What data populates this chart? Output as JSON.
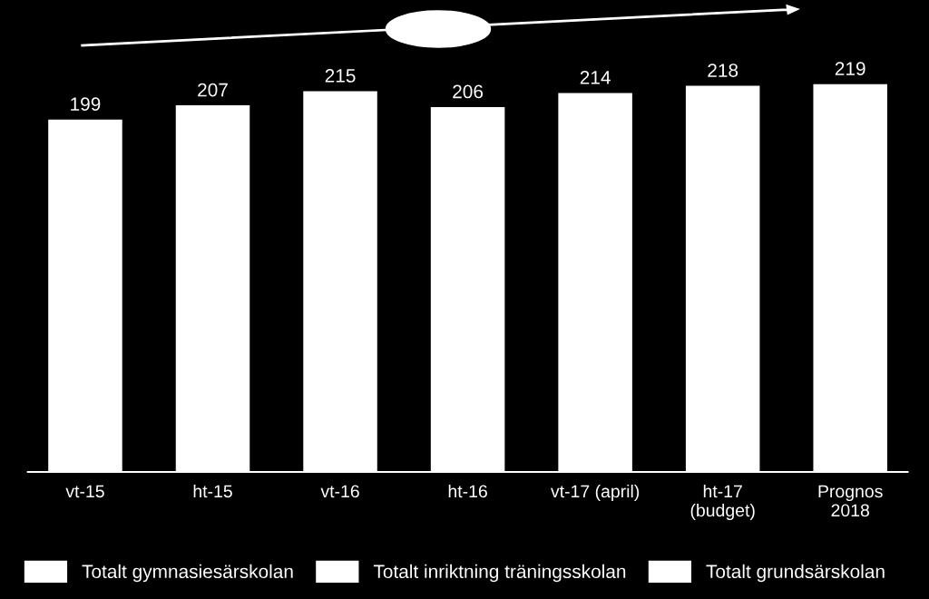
{
  "chart_data": {
    "type": "bar",
    "categories": [
      "vt-15",
      "ht-15",
      "vt-16",
      "ht-16",
      "vt-17 (april)",
      "ht-17\n(budget)",
      "Prognos\n2018"
    ],
    "series": [
      {
        "name": "Totalt gymnasiesärskolan",
        "color": "#ffffff",
        "values": [
          199,
          207,
          215,
          206,
          214,
          218,
          219
        ]
      },
      {
        "name": "Totalt inriktning träningsskolan",
        "color": "#ffffff",
        "values": [
          null,
          null,
          null,
          null,
          null,
          null,
          null
        ]
      },
      {
        "name": "Totalt grundsärskolan",
        "color": "#ffffff",
        "values": [
          null,
          null,
          null,
          null,
          null,
          null,
          null
        ]
      }
    ],
    "data_labels": true,
    "tick_labels": "x",
    "grid": false,
    "legend": "bottom"
  }
}
